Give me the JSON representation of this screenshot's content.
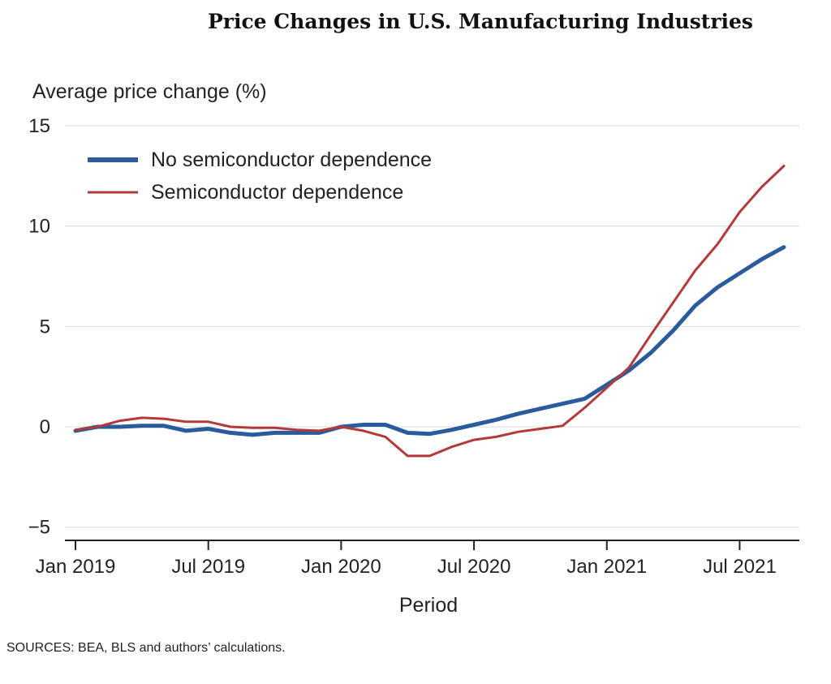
{
  "chart_data": {
    "type": "line",
    "title": "Price Changes in U.S. Manufacturing Industries",
    "ylabel": "Average price change (%)",
    "xlabel": "Period",
    "source": "SOURCES: BEA, BLS and authors’ calculations.",
    "ylim": [
      -5.5,
      15
    ],
    "yticks": [
      15,
      10,
      5,
      0,
      -5
    ],
    "ytick_labels": [
      "15",
      "10",
      "5",
      "0",
      "−5"
    ],
    "xlim": [
      0,
      32
    ],
    "xticks": [
      {
        "x": 0,
        "label": "Jan 2019"
      },
      {
        "x": 6,
        "label": "Jul 2019"
      },
      {
        "x": 12,
        "label": "Jan 2020"
      },
      {
        "x": 18,
        "label": "Jul 2020"
      },
      {
        "x": 24,
        "label": "Jan 2021"
      },
      {
        "x": 30,
        "label": "Jul 2021"
      }
    ],
    "x": [
      0,
      1,
      2,
      3,
      4,
      5,
      6,
      7,
      8,
      9,
      10,
      11,
      12,
      13,
      14,
      15,
      16,
      17,
      18,
      19,
      20,
      21,
      22,
      23,
      24,
      25,
      26,
      27,
      28,
      29,
      30,
      31,
      32
    ],
    "series": [
      {
        "name": "No semiconductor dependence",
        "color": "#2a5b9c",
        "width": 5,
        "values": [
          -0.2,
          0.0,
          0.0,
          0.05,
          0.05,
          -0.2,
          -0.1,
          -0.3,
          -0.4,
          -0.3,
          -0.3,
          -0.3,
          0.0,
          0.1,
          0.1,
          -0.3,
          -0.35,
          -0.15,
          0.1,
          0.35,
          0.65,
          0.9,
          1.15,
          1.4,
          2.1,
          2.8,
          3.7,
          4.8,
          6.05,
          6.95,
          7.65,
          8.35,
          8.95
        ]
      },
      {
        "name": "Semiconductor dependence",
        "color": "#b23a3a",
        "width": 3,
        "values": [
          -0.15,
          0.0,
          0.3,
          0.45,
          0.4,
          0.25,
          0.25,
          0.0,
          -0.05,
          -0.05,
          -0.15,
          -0.2,
          0.0,
          -0.2,
          -0.5,
          -1.45,
          -1.45,
          -1.0,
          -0.65,
          -0.5,
          -0.25,
          -0.1,
          0.05,
          0.95,
          1.95,
          2.95,
          4.6,
          6.2,
          7.8,
          9.1,
          10.7,
          11.95,
          13.0
        ]
      }
    ],
    "grid": true,
    "legend": "top-left"
  }
}
